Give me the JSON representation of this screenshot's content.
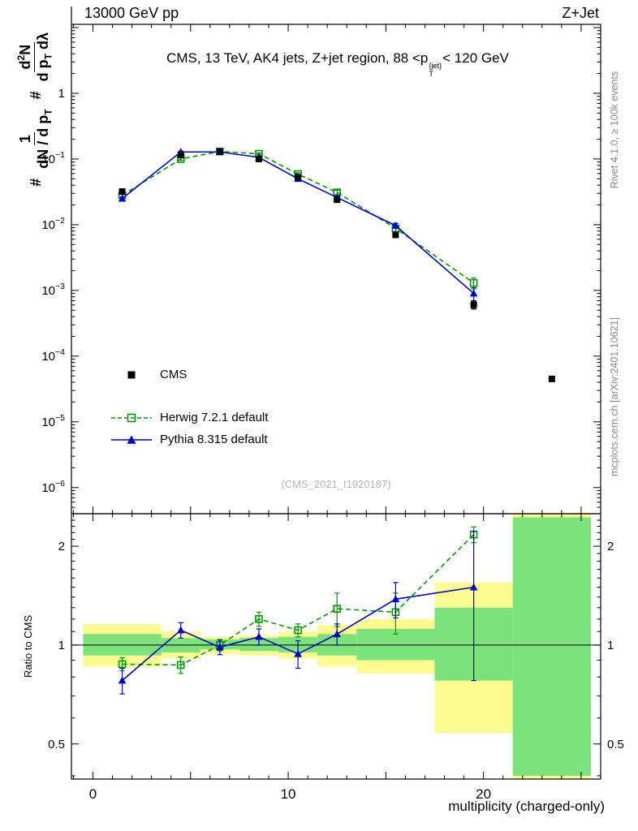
{
  "header": {
    "left": "13000 GeV pp",
    "right": "Z+Jet"
  },
  "panel_title": {
    "pre": "CMS, 13 TeV, AK4 jets, Z+jet region, 88 <p",
    "sup": "{jet}",
    "sub": "T",
    "post": "< 120 GeV"
  },
  "ylabel": {
    "hash1": "#",
    "f1num": "1",
    "f1den_a": "dN / d p",
    "f1den_sub": "T",
    "hash2": "#",
    "f2num_a": "d",
    "f2num_sup": "2",
    "f2num_b": "N",
    "f2den_a": "d p",
    "f2den_sub": "T",
    "f2den_b": " dλ"
  },
  "ratio_ylabel": "Ratio to CMS",
  "xlabel": "multiplicity (charged-only)",
  "watermark": "(CMS_2021_I1920187)",
  "side_right_top": "Rivet 4.1.0, ≥ 100k events",
  "side_right_bottom": "mcplots.cern.ch [arXiv:2401.10621]",
  "legend": {
    "items": [
      {
        "label": "CMS"
      },
      {
        "label": "Herwig 7.2.1 default"
      },
      {
        "label": "Pythia 8.315 default"
      }
    ]
  },
  "chart_data": {
    "type": "line",
    "title": "CMS, 13 TeV, AK4 jets, Z+jet region, 88 <p_T^{jet}< 120 GeV",
    "xlabel": "multiplicity (charged-only)",
    "ylabel": "# 1/(dN/dp_T) d2N/(dp_T dlambda)",
    "ratio_ylabel": "Ratio to CMS",
    "x_range": [
      -1.1,
      26.0
    ],
    "y_range_log": [
      4e-07,
      11.2
    ],
    "ratio_range_log": [
      0.391,
      2.512
    ],
    "x_ticks_labeled": [
      0,
      10,
      20
    ],
    "y_decades": [
      0,
      -1,
      -2,
      -3,
      -4,
      -5,
      -6
    ],
    "ratio_ticks": [
      0.5,
      1,
      2
    ],
    "x": [
      1.5,
      4.5,
      6.5,
      8.5,
      10.5,
      12.5,
      15.5,
      19.5
    ],
    "series": [
      {
        "name": "CMS",
        "marker": "square",
        "line": "none",
        "color": "#000000",
        "values": [
          0.032,
          0.115,
          0.13,
          0.1,
          0.053,
          0.024,
          0.007,
          0.0006
        ],
        "errors": [
          0.003,
          0.004,
          0.004,
          0.003,
          0.002,
          0.0015,
          0.0006,
          8e-05
        ]
      },
      {
        "name": "Herwig 7.2.1 default",
        "marker": "open-square",
        "line": "dashed",
        "color": "#009900",
        "values": [
          0.028,
          0.1,
          0.13,
          0.12,
          0.059,
          0.031,
          0.0088,
          0.0013
        ],
        "errors": [
          0.0015,
          0.004,
          0.004,
          0.004,
          0.003,
          0.0025,
          0.0009,
          0.00025
        ]
      },
      {
        "name": "Pythia 8.315 default",
        "marker": "triangle",
        "line": "solid",
        "color": "#0000cc",
        "values": [
          0.025,
          0.128,
          0.128,
          0.106,
          0.05,
          0.026,
          0.0097,
          0.0009
        ],
        "errors": [
          0.0015,
          0.004,
          0.004,
          0.003,
          0.002,
          0.0015,
          0.0008,
          0.0002
        ]
      }
    ],
    "cms_extra_point": {
      "x": 23.5,
      "y": 4.5e-05
    },
    "ratio": {
      "herwig": {
        "values": [
          0.875,
          0.87,
          1.0,
          1.2,
          1.11,
          1.29,
          1.26,
          2.17
        ],
        "errors": [
          0.04,
          0.05,
          0.04,
          0.06,
          0.05,
          0.15,
          0.18,
          0.12
        ]
      },
      "pythia": {
        "values": [
          0.78,
          1.11,
          0.985,
          1.06,
          0.94,
          1.08,
          1.38,
          1.5
        ],
        "errors": [
          0.07,
          0.06,
          0.05,
          0.06,
          0.09,
          0.08,
          0.17,
          0.72
        ]
      }
    },
    "ratio_bands": [
      {
        "x0": -0.5,
        "x1": 3.5,
        "yellow": [
          0.86,
          1.16
        ],
        "green": [
          0.93,
          1.08
        ]
      },
      {
        "x0": 3.5,
        "x1": 5.5,
        "yellow": [
          0.91,
          1.1
        ],
        "green": [
          0.95,
          1.05
        ]
      },
      {
        "x0": 5.5,
        "x1": 7.5,
        "yellow": [
          0.94,
          1.06
        ],
        "green": [
          0.97,
          1.04
        ]
      },
      {
        "x0": 7.5,
        "x1": 9.5,
        "yellow": [
          0.93,
          1.07
        ],
        "green": [
          0.96,
          1.05
        ]
      },
      {
        "x0": 9.5,
        "x1": 11.5,
        "yellow": [
          0.91,
          1.1
        ],
        "green": [
          0.95,
          1.06
        ]
      },
      {
        "x0": 11.5,
        "x1": 13.5,
        "yellow": [
          0.86,
          1.15
        ],
        "green": [
          0.93,
          1.08
        ]
      },
      {
        "x0": 13.5,
        "x1": 17.5,
        "yellow": [
          0.82,
          1.2
        ],
        "green": [
          0.9,
          1.12
        ]
      },
      {
        "x0": 17.5,
        "x1": 21.5,
        "yellow": [
          0.54,
          1.55
        ],
        "green": [
          0.78,
          1.3
        ]
      },
      {
        "x0": 21.5,
        "x1": 25.5,
        "yellow": [
          0.391,
          2.512
        ],
        "green": [
          0.4,
          2.45
        ]
      }
    ],
    "colors": {
      "band_yellow": "#fbfb8f",
      "band_green": "#7ce27c",
      "cms": "#000000",
      "herwig": "#009900",
      "pythia": "#0000cc"
    }
  }
}
